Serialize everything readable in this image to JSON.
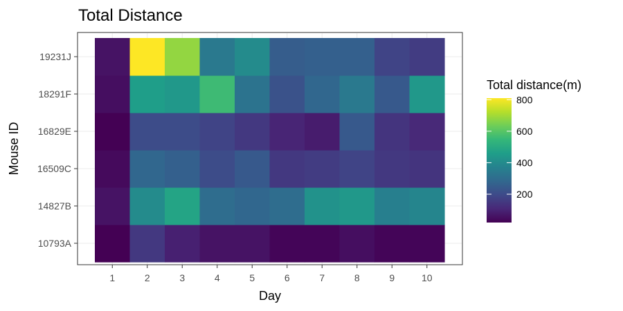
{
  "chart_data": {
    "type": "heatmap",
    "title": "Total Distance",
    "xlabel": "Day",
    "ylabel": "Mouse ID",
    "x": [
      "1",
      "2",
      "3",
      "4",
      "5",
      "6",
      "7",
      "8",
      "9",
      "10"
    ],
    "y": [
      "10793A",
      "14827B",
      "16509C",
      "16829E",
      "18291F",
      "19231J"
    ],
    "values": [
      [
        20,
        150,
        90,
        60,
        60,
        30,
        30,
        50,
        30,
        30
      ],
      [
        60,
        400,
        480,
        300,
        280,
        300,
        420,
        440,
        360,
        380
      ],
      [
        40,
        280,
        260,
        200,
        240,
        150,
        160,
        180,
        150,
        140
      ],
      [
        20,
        200,
        200,
        180,
        150,
        100,
        80,
        240,
        140,
        110
      ],
      [
        50,
        460,
        440,
        560,
        320,
        220,
        280,
        340,
        240,
        440
      ],
      [
        60,
        810,
        680,
        340,
        400,
        250,
        260,
        260,
        180,
        160
      ]
    ],
    "legend": {
      "title": "Total distance(m)",
      "ticks": [
        200,
        400,
        600,
        800
      ],
      "min": 20,
      "max": 810,
      "colors": [
        "#440154",
        "#482878",
        "#3e4a89",
        "#31688e",
        "#26828e",
        "#1f9e89",
        "#35b779",
        "#6ece58",
        "#b5de2b",
        "#fde725"
      ]
    },
    "grid": true,
    "legend_position": "right"
  }
}
